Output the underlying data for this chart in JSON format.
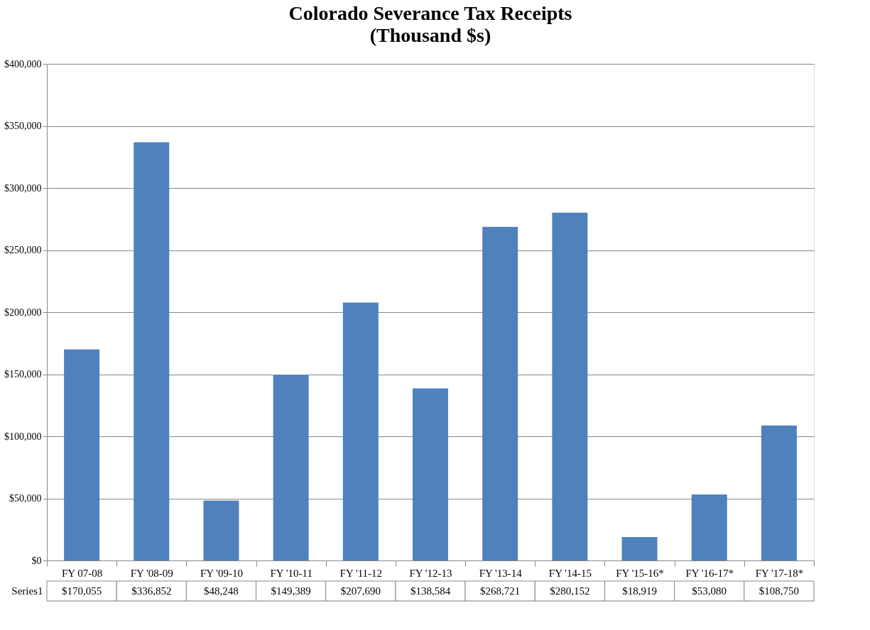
{
  "chart_data": {
    "type": "bar",
    "title": "Colorado Severance Tax Receipts",
    "subtitle": "(Thousand $s)",
    "categories": [
      "FY 07-08",
      "FY '08-09",
      "FY '09-10",
      "FY '10-11",
      "FY '11-12",
      "FY '12-13",
      "FY '13-14",
      "FY '14-15",
      "FY '15-16*",
      "FY '16-17*",
      "FY '17-18*"
    ],
    "series": [
      {
        "name": "Series1",
        "color": "#4f81bd",
        "values": [
          170055,
          336852,
          48248,
          149389,
          207690,
          138584,
          268721,
          280152,
          18919,
          53080,
          108750
        ],
        "value_labels": [
          "$170,055",
          "$336,852",
          "$48,248",
          "$149,389",
          "$207,690",
          "$138,584",
          "$268,721",
          "$280,152",
          "$18,919",
          "$53,080",
          "$108,750"
        ]
      }
    ],
    "ylim": [
      0,
      400000
    ],
    "yticks": [
      {
        "value": 0,
        "label": "$0"
      },
      {
        "value": 50000,
        "label": "$50,000"
      },
      {
        "value": 100000,
        "label": "$100,000"
      },
      {
        "value": 150000,
        "label": "$150,000"
      },
      {
        "value": 200000,
        "label": "$200,000"
      },
      {
        "value": 250000,
        "label": "$250,000"
      },
      {
        "value": 300000,
        "label": "$300,000"
      },
      {
        "value": 350000,
        "label": "$350,000"
      },
      {
        "value": 400000,
        "label": "$400,000"
      }
    ],
    "grid": "y",
    "legend": false
  }
}
